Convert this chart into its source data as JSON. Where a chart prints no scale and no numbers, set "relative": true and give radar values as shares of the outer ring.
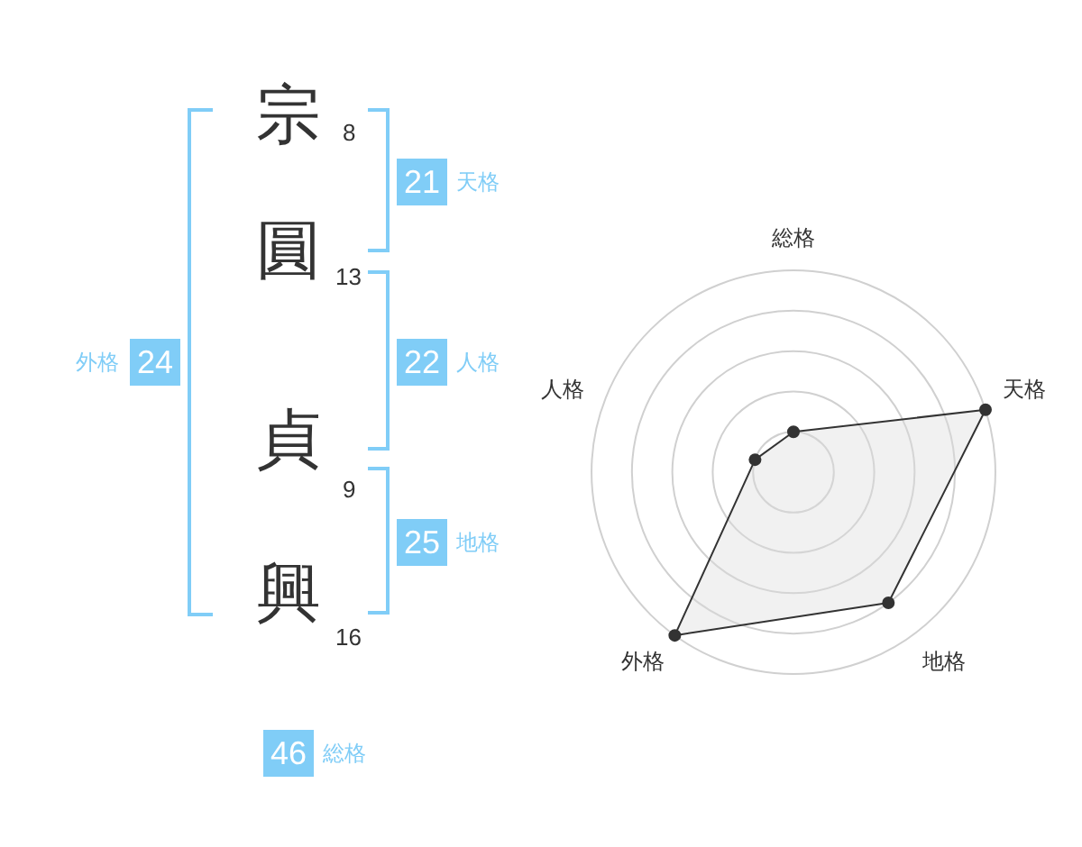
{
  "chart_data": [
    {
      "type": "other",
      "categories": [
        "宗",
        "圓",
        "貞",
        "興"
      ],
      "values": [
        8,
        13,
        9,
        16
      ],
      "data_labels": true
    },
    {
      "type": "other",
      "categories": [
        "天格",
        "人格",
        "地格",
        "外格",
        "総格"
      ],
      "values": [
        21,
        22,
        25,
        24,
        46
      ],
      "color": "#80cdf7",
      "data_labels": true
    },
    {
      "type": "radar",
      "relative": true,
      "categories": [
        "総格",
        "天格",
        "地格",
        "外格",
        "人格"
      ],
      "grid": true,
      "marker": "circle",
      "series": [
        {
          "color": "#333333",
          "values": [
            0.2,
            1,
            0.8,
            1,
            0.2
          ]
        }
      ]
    }
  ]
}
